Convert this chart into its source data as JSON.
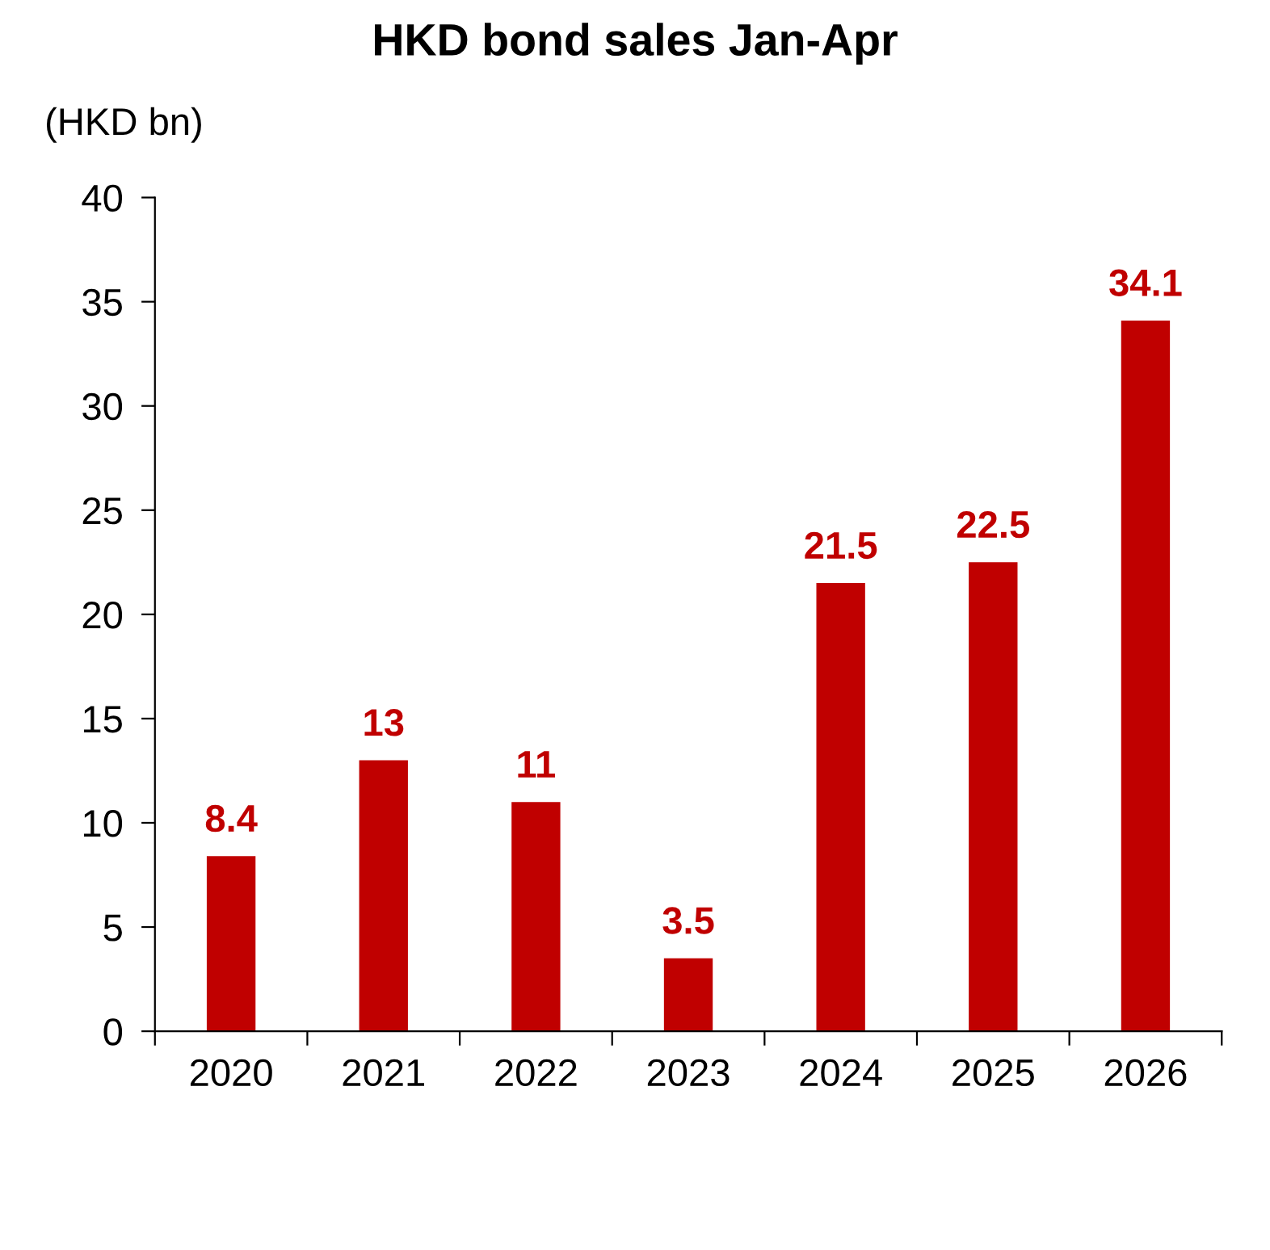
{
  "chart_data": {
    "type": "bar",
    "title": "HKD bond sales Jan-Apr",
    "ylabel": "(HKD bn)",
    "categories": [
      "2020",
      "2021",
      "2022",
      "2023",
      "2024",
      "2025",
      "2026"
    ],
    "values": [
      8.4,
      13,
      11,
      3.5,
      21.5,
      22.5,
      34.1
    ],
    "color": "#c00000",
    "data_labels": true,
    "grid": false,
    "ylim": [
      0,
      40
    ],
    "yticks": [
      0,
      5,
      10,
      15,
      20,
      25,
      30,
      35,
      40
    ]
  }
}
